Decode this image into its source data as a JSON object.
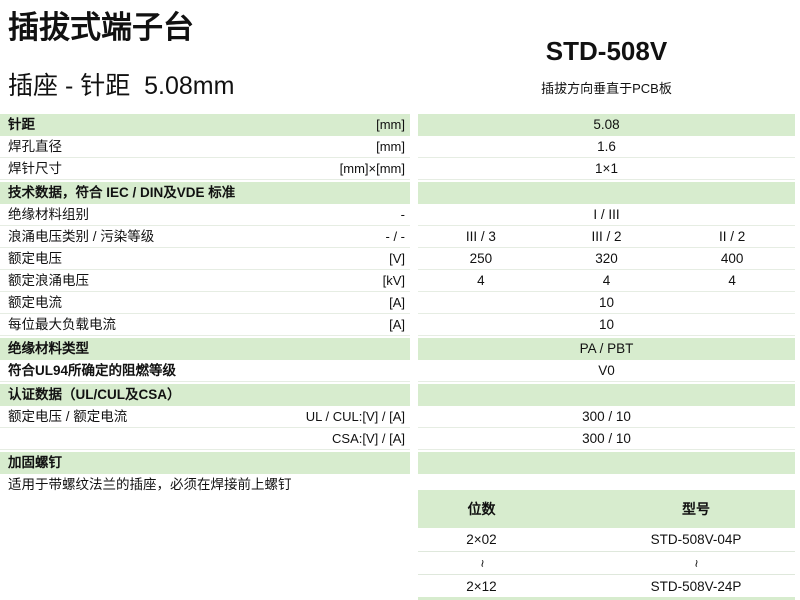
{
  "header": {
    "title": "插拔式端子台",
    "subtitle": "插座 - 针距  5.08mm",
    "model": "STD-508V",
    "model_note": "插拔方向垂直于PCB板"
  },
  "colors": {
    "band_green": "#d7ecce",
    "separator": "#e6ede3"
  },
  "spec_rows": [
    {
      "label": "针距",
      "unit": "[mm]",
      "values": [
        "5.08"
      ],
      "type": "green",
      "bold": true
    },
    {
      "label": "焊孔直径",
      "unit": "[mm]",
      "values": [
        "1.6"
      ],
      "type": "white",
      "bold": false
    },
    {
      "label": "焊针尺寸",
      "unit": "[mm]×[mm]",
      "values": [
        "1×1"
      ],
      "type": "white",
      "bold": false
    },
    {
      "label": "技术数据，符合 IEC / DIN及VDE 标准",
      "unit": "",
      "values": [],
      "type": "header",
      "bold": true
    },
    {
      "label": "绝缘材料组别",
      "unit": "-",
      "values": [
        "I / III"
      ],
      "type": "white",
      "bold": false
    },
    {
      "label": "浪涌电压类别 / 污染等级",
      "unit": "- / -",
      "values": [
        "III / 3",
        "III / 2",
        "II / 2"
      ],
      "type": "white",
      "bold": false
    },
    {
      "label": "额定电压",
      "unit": "[V]",
      "values": [
        "250",
        "320",
        "400"
      ],
      "type": "white",
      "bold": false
    },
    {
      "label": "额定浪涌电压",
      "unit": "[kV]",
      "values": [
        "4",
        "4",
        "4"
      ],
      "type": "white",
      "bold": false
    },
    {
      "label": "额定电流",
      "unit": "[A]",
      "values": [
        "10"
      ],
      "type": "white",
      "bold": false
    },
    {
      "label": "每位最大负载电流",
      "unit": "[A]",
      "values": [
        "10"
      ],
      "type": "white",
      "bold": false
    },
    {
      "label": "绝缘材料类型",
      "unit": "",
      "values": [
        "PA / PBT"
      ],
      "type": "green",
      "bold": true
    },
    {
      "label": "符合UL94所确定的阻燃等级",
      "unit": "",
      "values": [
        "V0"
      ],
      "type": "white",
      "bold": true
    },
    {
      "label": "认证数据（UL/CUL及CSA）",
      "unit": "",
      "values": [],
      "type": "header",
      "bold": true
    },
    {
      "label": "额定电压 / 额定电流",
      "unit": "UL / CUL:[V] / [A]",
      "values": [
        "300 / 10"
      ],
      "type": "white",
      "bold": false
    },
    {
      "label": "",
      "unit": "CSA:[V] / [A]",
      "values": [
        "300 / 10"
      ],
      "type": "white",
      "bold": false
    },
    {
      "label": "加固螺钉",
      "unit": "",
      "values": [],
      "type": "header",
      "bold": true
    },
    {
      "label": "适用于带螺纹法兰的插座，必须在焊接前上螺钉",
      "unit": "",
      "values": [],
      "type": "note",
      "bold": false
    }
  ],
  "order_table": {
    "headers": [
      "位数",
      "型号"
    ],
    "rows": [
      [
        "2×02",
        "STD-508V-04P"
      ],
      [
        "~",
        "~"
      ],
      [
        "2×12",
        "STD-508V-24P"
      ]
    ]
  }
}
